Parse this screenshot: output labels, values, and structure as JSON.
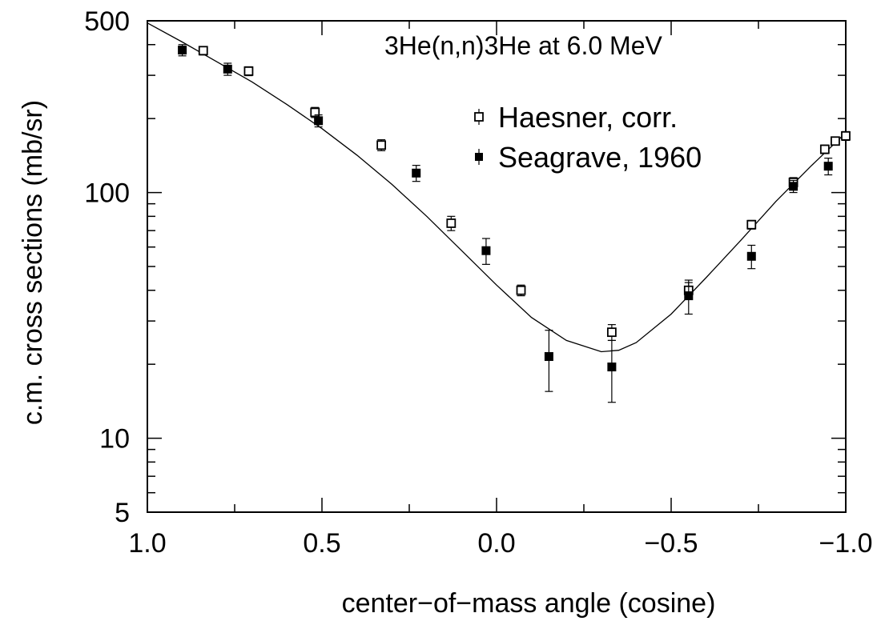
{
  "chart_data": {
    "type": "scatter",
    "title": "3He(n,n)3He at 6.0 MeV",
    "xlabel": "center−of−mass angle (cosine)",
    "ylabel": "c.m. cross sections (mb/sr)",
    "xlim": [
      1.0,
      -1.0
    ],
    "ylim": [
      5,
      500
    ],
    "yscale": "log",
    "x_ticks": [
      {
        "value": 1.0,
        "label": "1.0"
      },
      {
        "value": 0.5,
        "label": "0.5"
      },
      {
        "value": 0.0,
        "label": "0.0"
      },
      {
        "value": -0.5,
        "label": "−0.5"
      },
      {
        "value": -1.0,
        "label": "−1.0"
      }
    ],
    "y_ticks": [
      {
        "value": 500,
        "label": "500"
      },
      {
        "value": 100,
        "label": "100"
      },
      {
        "value": 10,
        "label": "10"
      },
      {
        "value": 5,
        "label": "5"
      }
    ],
    "legend_position": "top-right",
    "series": [
      {
        "name": "Haesner, corr.",
        "marker": "open-square",
        "points": [
          {
            "x": 0.84,
            "y": 378,
            "err": 15
          },
          {
            "x": 0.71,
            "y": 312,
            "err": 13
          },
          {
            "x": 0.52,
            "y": 212,
            "err": 10
          },
          {
            "x": 0.33,
            "y": 156,
            "err": 8
          },
          {
            "x": 0.13,
            "y": 75,
            "err": 5
          },
          {
            "x": -0.07,
            "y": 40,
            "err": 2
          },
          {
            "x": -0.33,
            "y": 27,
            "err": 2
          },
          {
            "x": -0.55,
            "y": 40,
            "err": 3
          },
          {
            "x": -0.73,
            "y": 74,
            "err": 3
          },
          {
            "x": -0.85,
            "y": 110,
            "err": 5
          },
          {
            "x": -0.94,
            "y": 150,
            "err": 6
          },
          {
            "x": -0.97,
            "y": 162,
            "err": 6
          },
          {
            "x": -1.0,
            "y": 170,
            "err": 7
          }
        ]
      },
      {
        "name": "Seagrave, 1960",
        "marker": "filled-square",
        "points": [
          {
            "x": 0.9,
            "y": 380,
            "err": 20
          },
          {
            "x": 0.77,
            "y": 318,
            "err": 18
          },
          {
            "x": 0.51,
            "y": 196,
            "err": 11
          },
          {
            "x": 0.23,
            "y": 120,
            "err": 9
          },
          {
            "x": 0.03,
            "y": 58,
            "err": 7
          },
          {
            "x": -0.15,
            "y": 21.5,
            "err": 6
          },
          {
            "x": -0.33,
            "y": 19.5,
            "err": 5.5
          },
          {
            "x": -0.55,
            "y": 38,
            "err": 6
          },
          {
            "x": -0.73,
            "y": 55,
            "err": 6
          },
          {
            "x": -0.85,
            "y": 106,
            "err": 6
          },
          {
            "x": -0.95,
            "y": 128,
            "err": 10
          }
        ]
      }
    ],
    "fit_curve": {
      "type": "line",
      "points": [
        [
          1.0,
          490
        ],
        [
          0.9,
          410
        ],
        [
          0.8,
          340
        ],
        [
          0.7,
          282
        ],
        [
          0.6,
          228
        ],
        [
          0.5,
          182
        ],
        [
          0.4,
          142
        ],
        [
          0.3,
          108
        ],
        [
          0.2,
          80
        ],
        [
          0.1,
          58
        ],
        [
          0.0,
          42
        ],
        [
          -0.1,
          31
        ],
        [
          -0.2,
          25
        ],
        [
          -0.3,
          22.5
        ],
        [
          -0.35,
          22.8
        ],
        [
          -0.4,
          24.5
        ],
        [
          -0.5,
          32
        ],
        [
          -0.6,
          45
        ],
        [
          -0.7,
          64
        ],
        [
          -0.8,
          92
        ],
        [
          -0.9,
          128
        ],
        [
          -1.0,
          175
        ]
      ]
    }
  }
}
